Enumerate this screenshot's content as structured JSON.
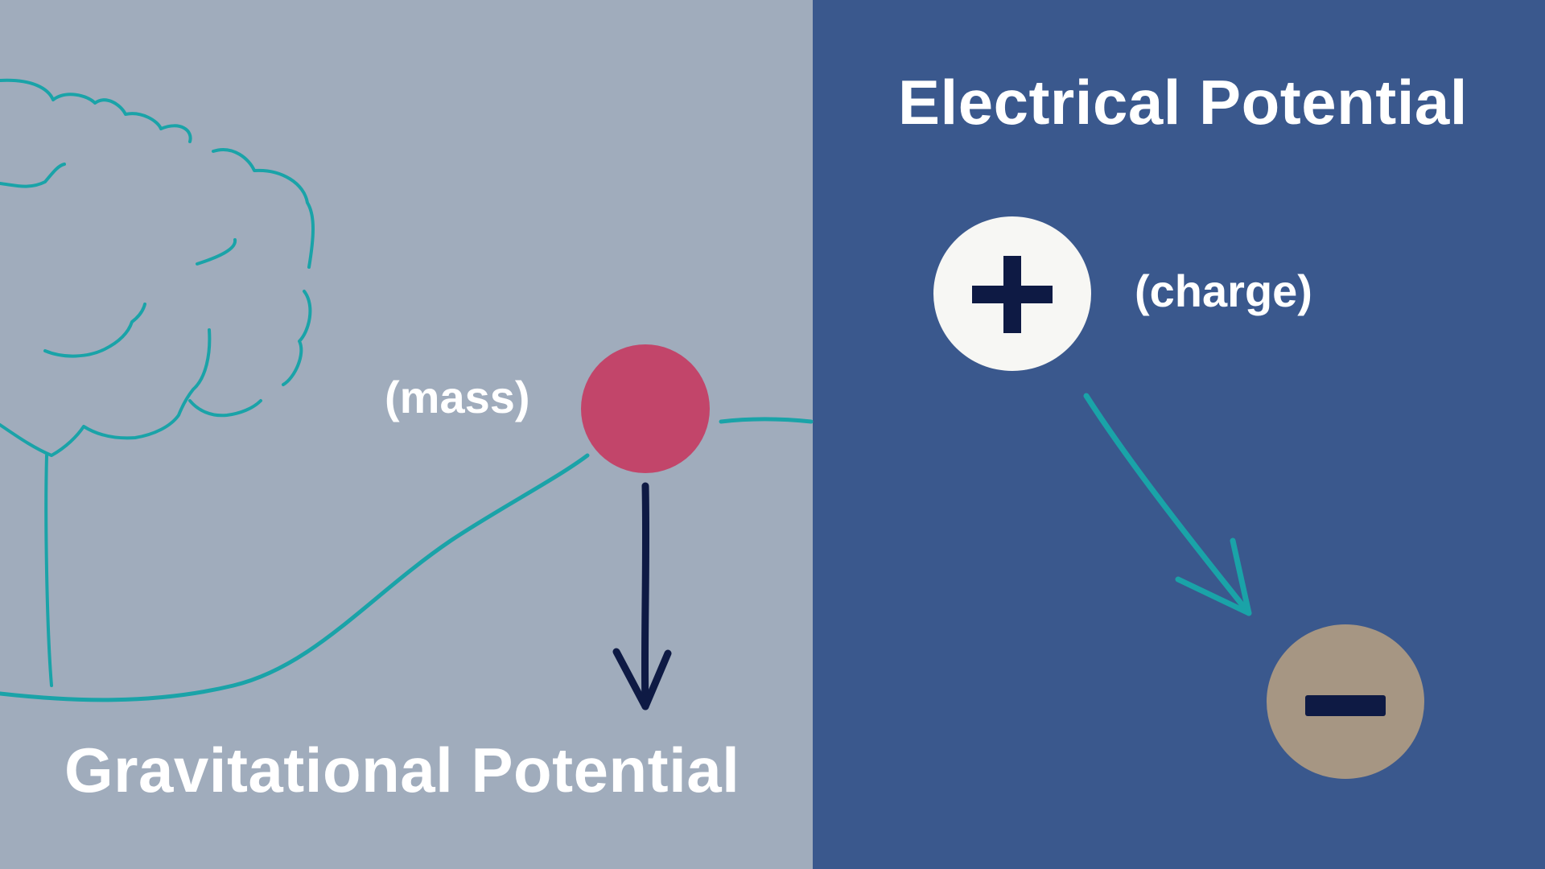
{
  "left_panel": {
    "title": "Gravitational Potential",
    "mass_label": "(mass)"
  },
  "right_panel": {
    "title": "Electrical Potential",
    "charge_label": "(charge)",
    "positive_symbol": "+",
    "negative_symbol": "−"
  },
  "colors": {
    "left_background": "#a0acbc",
    "right_background": "#3a588d",
    "teal_line": "#1aa3a8",
    "mass_ball": "#c2456a",
    "positive_charge": "#f7f7f4",
    "negative_charge": "#a69683",
    "dark_navy": "#0e1a44",
    "text": "#ffffff"
  },
  "icons": {
    "tree": "tree-icon",
    "hill": "hill-line",
    "gravity_arrow": "arrow-down-icon",
    "field_arrow": "arrow-diagonal-icon"
  }
}
